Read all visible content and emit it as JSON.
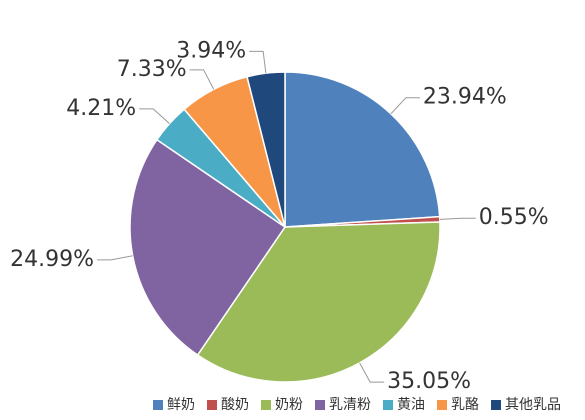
{
  "chart_data": {
    "type": "pie",
    "categories": [
      "鲜奶",
      "酸奶",
      "奶粉",
      "乳清粉",
      "黄油",
      "乳酪",
      "其他乳品"
    ],
    "values": [
      23.94,
      0.55,
      35.05,
      24.99,
      4.21,
      7.33,
      3.94
    ],
    "value_labels": [
      "23.94%",
      "0.55%",
      "35.05%",
      "24.99%",
      "4.21%",
      "7.33%",
      "3.94%"
    ],
    "colors": [
      "#4f81bd",
      "#c0504d",
      "#9bbb59",
      "#8064a2",
      "#4bacc6",
      "#f79646",
      "#1f497d"
    ],
    "legend": "bottom"
  }
}
